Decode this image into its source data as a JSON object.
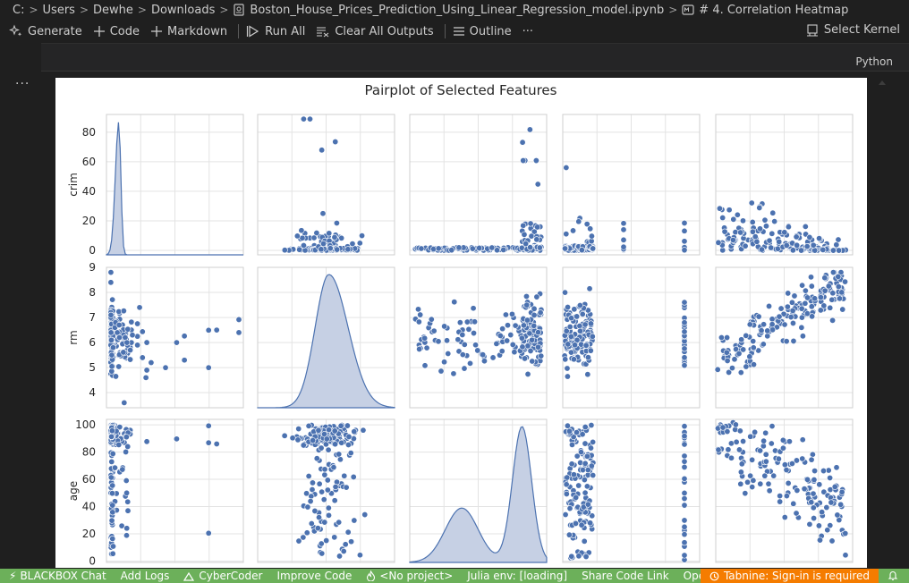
{
  "breadcrumb": {
    "parts": [
      "C:",
      "Users",
      "Dewhe",
      "Downloads",
      "Boston_House_Prices_Prediction_Using_Linear_Regression_model.ipynb",
      "# 4. Correlation Heatmap"
    ]
  },
  "toolbar": {
    "generate": "Generate",
    "code": "Code",
    "markdown": "Markdown",
    "run_all": "Run All",
    "clear_outputs": "Clear All Outputs",
    "outline": "Outline",
    "more": "···",
    "select_kernel": "Select Kernel"
  },
  "cell": {
    "language": "Python",
    "more": "···"
  },
  "colors": {
    "point": "#4c72b0",
    "status_bg": "#6cb05a",
    "tabnine_bg": "#f57c00"
  },
  "chart_data": {
    "type": "scatter",
    "title": "Pairplot of Selected Features",
    "variables": [
      "crim",
      "rm",
      "age"
    ],
    "grid": true,
    "axes": {
      "crim": {
        "ticks": [
          "0",
          "20",
          "40",
          "60",
          "80"
        ],
        "range": [
          -3,
          92
        ]
      },
      "rm": {
        "ticks": [
          "4",
          "5",
          "6",
          "7",
          "8",
          "9"
        ],
        "range": [
          3.4,
          9.0
        ]
      },
      "age": {
        "ticks": [
          "0",
          "20",
          "40",
          "60",
          "80",
          "100"
        ],
        "range": [
          -1,
          104
        ]
      }
    },
    "diagonal": "kde",
    "approx_points": {
      "crim": [
        0.1,
        0.2,
        0.03,
        0.05,
        0.1,
        0.2,
        0.5,
        1.2,
        0.3,
        4.5,
        8.9,
        13.5,
        0.02,
        0.6,
        1.6,
        10.0,
        14.3,
        22.0,
        25.0,
        38.0,
        45.7,
        51.1,
        67.9,
        73.5,
        88.9,
        0.4,
        2.9,
        6.0,
        0.08,
        15.0,
        18.5,
        24.4,
        28.0,
        9.3,
        3.3,
        0.7,
        11.2,
        20.0,
        0.05,
        5.8
      ],
      "rm": [
        6.5,
        6.4,
        7.2,
        7.0,
        7.1,
        6.4,
        6.0,
        5.9,
        5.6,
        6.4,
        6.3,
        5.7,
        5.9,
        6.1,
        5.8,
        6.2,
        6.0,
        5.4,
        4.9,
        5.0,
        6.0,
        5.3,
        5.0,
        6.5,
        6.4,
        6.1,
        6.6,
        6.2,
        8.8,
        6.3,
        5.9,
        4.6,
        5.2,
        3.6,
        6.8,
        5.5,
        6.0,
        7.4,
        8.4,
        6.7
      ],
      "age": [
        65,
        79,
        61,
        46,
        54,
        59,
        67,
        96,
        100,
        85,
        94,
        100,
        82,
        39,
        96,
        91,
        100,
        95,
        98,
        90,
        100,
        97,
        100,
        87,
        93,
        91,
        56,
        95,
        34,
        89,
        100,
        98,
        97,
        100,
        42,
        29,
        88,
        21,
        91,
        68
      ]
    }
  },
  "status": {
    "blackbox": "BLACKBOX Chat",
    "add_logs": "Add Logs",
    "cybercoder": "CyberCoder",
    "improve_code": "Improve Code",
    "no_project": "<No project>",
    "julia": "Julia env: [loading]",
    "share": "Share Code Link",
    "open_website": "Open Website",
    "tabnine": "Tabnine: Sign-in is required"
  }
}
